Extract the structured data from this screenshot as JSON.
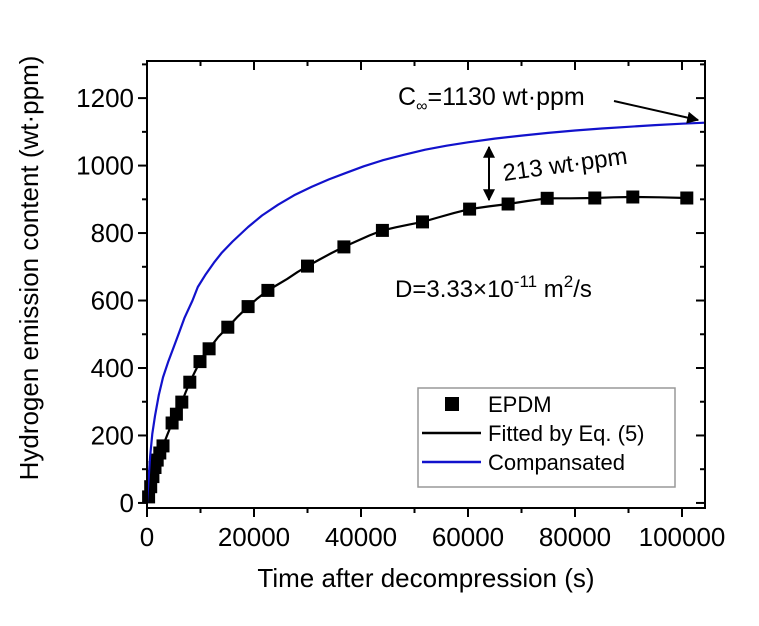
{
  "figure": {
    "background": "#ffffff"
  },
  "colors": {
    "axis": "#000000",
    "epdm": "#000000",
    "fitted": "#000000",
    "compensated": "#1212cc",
    "legend_border": "#999999"
  },
  "annotations": {
    "c_infinity": {
      "c": "C",
      "sub": "∞",
      "rest": "=1130 wt·ppm"
    },
    "gap": "213 wt·ppm",
    "diffusion": {
      "pre": "D=3.33×10",
      "exp": "-11",
      "mid": " m",
      "exp2": "2",
      "post": "/s"
    }
  },
  "legend": {
    "entries": [
      {
        "label": "EPDM",
        "swatch": "square",
        "color": "#000000"
      },
      {
        "label": "Fitted by Eq. (5)",
        "swatch": "line",
        "color": "#000000"
      },
      {
        "label": "Compansated",
        "swatch": "line",
        "color": "#1212cc"
      }
    ]
  },
  "chart_data": {
    "type": "line+scatter",
    "title": "",
    "xlabel": "Time after decompression (s)",
    "ylabel": "Hydrogen emission content (wt·ppm)",
    "xlim": [
      0,
      104300
    ],
    "ylim": [
      -15,
      1310
    ],
    "grid": false,
    "legend_position": "lower right inside",
    "x_ticks": {
      "major": [
        0,
        20000,
        40000,
        60000,
        80000,
        100000
      ],
      "labels": [
        "0",
        "20000",
        "40000",
        "60000",
        "80000",
        "100000"
      ],
      "minor_step": 10000
    },
    "y_ticks": {
      "major": [
        0,
        200,
        400,
        600,
        800,
        1000,
        1200
      ],
      "labels": [
        "0",
        "200",
        "400",
        "600",
        "800",
        "1000",
        "1200"
      ],
      "minor_step": 100
    },
    "annotation_values": {
      "C_infinity_wt_ppm": 1130,
      "gap_wt_ppm": 213,
      "D_m2_per_s": "3.33e-11"
    },
    "series": [
      {
        "name": "EPDM",
        "type": "scatter",
        "marker": "square",
        "color": "#000000",
        "points": [
          [
            300,
            18
          ],
          [
            700,
            48
          ],
          [
            1100,
            78
          ],
          [
            1500,
            105
          ],
          [
            1900,
            127
          ],
          [
            2400,
            148
          ],
          [
            3000,
            169
          ],
          [
            4700,
            237
          ],
          [
            5500,
            263
          ],
          [
            6500,
            299
          ],
          [
            8000,
            358
          ],
          [
            9900,
            419
          ],
          [
            11600,
            457
          ],
          [
            15100,
            521
          ],
          [
            18900,
            582
          ],
          [
            22600,
            630
          ],
          [
            30000,
            702
          ],
          [
            36800,
            759
          ],
          [
            44000,
            808
          ],
          [
            51500,
            833
          ],
          [
            60300,
            871
          ],
          [
            67500,
            886
          ],
          [
            74800,
            903
          ],
          [
            83700,
            904
          ],
          [
            90800,
            907
          ],
          [
            100900,
            904
          ]
        ]
      },
      {
        "name": "Fitted by Eq. (5)",
        "type": "line",
        "color": "#000000",
        "points": [
          [
            0,
            0
          ],
          [
            300,
            18
          ],
          [
            700,
            48
          ],
          [
            1100,
            78
          ],
          [
            1500,
            105
          ],
          [
            1900,
            127
          ],
          [
            2400,
            148
          ],
          [
            3000,
            169
          ],
          [
            3800,
            202
          ],
          [
            4700,
            237
          ],
          [
            5500,
            263
          ],
          [
            6500,
            299
          ],
          [
            7200,
            327
          ],
          [
            8000,
            358
          ],
          [
            9000,
            390
          ],
          [
            9900,
            419
          ],
          [
            10700,
            440
          ],
          [
            11600,
            457
          ],
          [
            13300,
            492
          ],
          [
            15100,
            521
          ],
          [
            17000,
            553
          ],
          [
            18900,
            582
          ],
          [
            20700,
            607
          ],
          [
            22600,
            630
          ],
          [
            24300,
            646
          ],
          [
            26200,
            664
          ],
          [
            28100,
            684
          ],
          [
            30000,
            702
          ],
          [
            32300,
            722
          ],
          [
            34500,
            741
          ],
          [
            36800,
            759
          ],
          [
            39200,
            776
          ],
          [
            41600,
            793
          ],
          [
            44000,
            808
          ],
          [
            46500,
            817
          ],
          [
            49000,
            825
          ],
          [
            51500,
            833
          ],
          [
            54400,
            846
          ],
          [
            57350,
            859
          ],
          [
            60300,
            871
          ],
          [
            63900,
            879
          ],
          [
            67500,
            886
          ],
          [
            71100,
            895
          ],
          [
            74800,
            903
          ],
          [
            79200,
            903
          ],
          [
            83700,
            904
          ],
          [
            87200,
            906
          ],
          [
            90800,
            907
          ],
          [
            95800,
            906
          ],
          [
            100900,
            904
          ]
        ]
      },
      {
        "name": "Compansated",
        "type": "line",
        "color": "#1212cc",
        "points": [
          [
            0,
            0
          ],
          [
            300,
            70
          ],
          [
            600,
            140
          ],
          [
            1000,
            205
          ],
          [
            1500,
            258
          ],
          [
            2200,
            320
          ],
          [
            3000,
            372
          ],
          [
            4000,
            420
          ],
          [
            5000,
            462
          ],
          [
            6000,
            505
          ],
          [
            7000,
            548
          ],
          [
            8500,
            600
          ],
          [
            9500,
            640
          ],
          [
            11000,
            678
          ],
          [
            12500,
            712
          ],
          [
            14000,
            742
          ],
          [
            16000,
            775
          ],
          [
            18900,
            818
          ],
          [
            21500,
            852
          ],
          [
            24500,
            884
          ],
          [
            27500,
            912
          ],
          [
            30800,
            937
          ],
          [
            34000,
            959
          ],
          [
            37000,
            977
          ],
          [
            40500,
            998
          ],
          [
            44100,
            1016
          ],
          [
            48000,
            1032
          ],
          [
            52000,
            1047
          ],
          [
            56000,
            1059
          ],
          [
            60000,
            1069
          ],
          [
            65000,
            1080
          ],
          [
            70000,
            1089
          ],
          [
            75000,
            1097
          ],
          [
            80000,
            1104
          ],
          [
            85000,
            1110
          ],
          [
            90000,
            1115
          ],
          [
            95000,
            1120
          ],
          [
            100000,
            1124
          ],
          [
            104300,
            1127
          ]
        ]
      }
    ]
  }
}
